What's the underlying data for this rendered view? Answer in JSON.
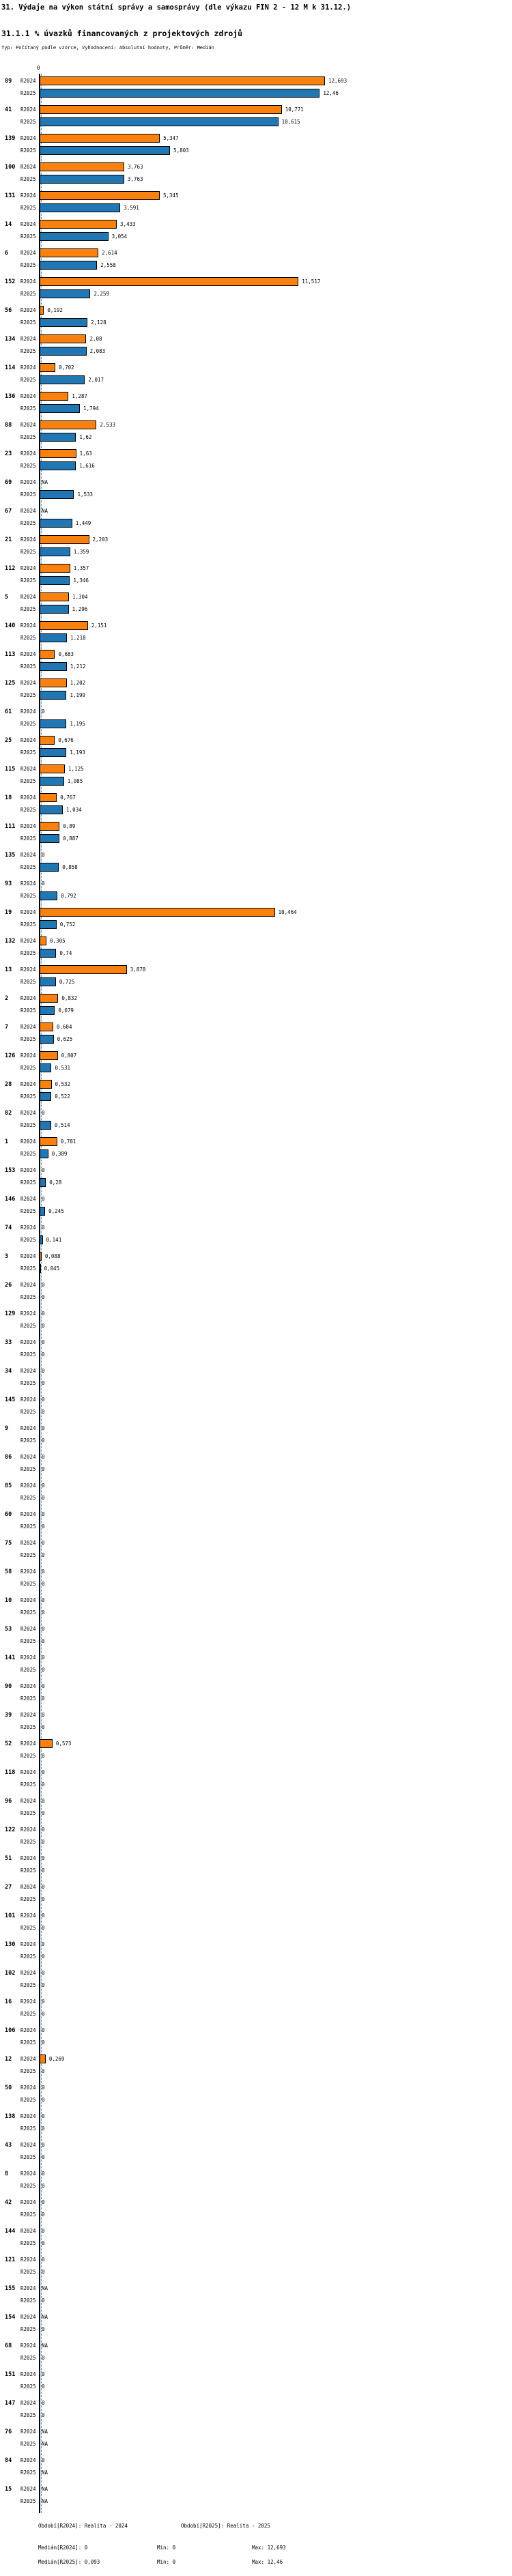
{
  "title": "31. Výdaje na výkon státní správy a samosprávy (dle výkazu FIN 2 - 12 M k 31.12.)",
  "subtitle": "31.1.1 % úvazků financovaných z projektových zdrojů",
  "meta": "Typ: Počítaný podle vzorce, Vyhodnocení: Absolutní hodnoty, Průměr: Medián",
  "colors": {
    "r2024": "#F98110",
    "r2025": "#2176B4",
    "median_line": "#4C96CC",
    "axis": "#000000"
  },
  "footer": {
    "period_2024": "Období[R2024]: Realita - 2024",
    "period_2025": "Období[R2025]: Realita - 2025",
    "median_2024": "Medián[R2024]: 0",
    "min_2024": "Min: 0",
    "max_2024": "Max: 12,693",
    "median_2025": "Medián[R2025]: 0,093",
    "min_2025": "Min: 0",
    "max_2025": "Max: 12,46"
  },
  "chart_data": {
    "type": "bar",
    "orientation": "horizontal",
    "title": "31.1.1 % úvazků financovaných z projektových zdrojů",
    "series": [
      "R2024",
      "R2025"
    ],
    "legend_position": "none",
    "grid": false,
    "decimal_separator": ",",
    "value_axis": {
      "tick_labels": [
        "0"
      ],
      "min": 0,
      "max": 12.693
    },
    "median_lines": {
      "R2024": 0,
      "R2025": 0.093
    },
    "rows": [
      {
        "category": "89",
        "R2024": "12,693",
        "R2025": "12,46"
      },
      {
        "category": "41",
        "R2024": "10,771",
        "R2025": "10,615"
      },
      {
        "category": "139",
        "R2024": "5,347",
        "R2025": "5,803"
      },
      {
        "category": "100",
        "R2024": "3,763",
        "R2025": "3,763"
      },
      {
        "category": "131",
        "R2024": "5,345",
        "R2025": "3,591"
      },
      {
        "category": "14",
        "R2024": "3,433",
        "R2025": "3,054"
      },
      {
        "category": "6",
        "R2024": "2,614",
        "R2025": "2,558"
      },
      {
        "category": "152",
        "R2024": "11,517",
        "R2025": "2,259"
      },
      {
        "category": "56",
        "R2024": "0,192",
        "R2025": "2,128"
      },
      {
        "category": "134",
        "R2024": "2,08",
        "R2025": "2,083"
      },
      {
        "category": "114",
        "R2024": "0,702",
        "R2025": "2,017"
      },
      {
        "category": "136",
        "R2024": "1,287",
        "R2025": "1,794"
      },
      {
        "category": "88",
        "R2024": "2,533",
        "R2025": "1,62"
      },
      {
        "category": "23",
        "R2024": "1,63",
        "R2025": "1,616"
      },
      {
        "category": "69",
        "R2024": "NA",
        "R2025": "1,533"
      },
      {
        "category": "67",
        "R2024": "NA",
        "R2025": "1,449"
      },
      {
        "category": "21",
        "R2024": "2,203",
        "R2025": "1,359"
      },
      {
        "category": "112",
        "R2024": "1,357",
        "R2025": "1,346"
      },
      {
        "category": "5",
        "R2024": "1,304",
        "R2025": "1,296"
      },
      {
        "category": "140",
        "R2024": "2,151",
        "R2025": "1,218"
      },
      {
        "category": "113",
        "R2024": "0,683",
        "R2025": "1,212"
      },
      {
        "category": "125",
        "R2024": "1,202",
        "R2025": "1,199"
      },
      {
        "category": "61",
        "R2024": "0",
        "R2025": "1,195"
      },
      {
        "category": "25",
        "R2024": "0,676",
        "R2025": "1,193"
      },
      {
        "category": "115",
        "R2024": "1,125",
        "R2025": "1,085"
      },
      {
        "category": "18",
        "R2024": "0,767",
        "R2025": "1,034"
      },
      {
        "category": "111",
        "R2024": "0,89",
        "R2025": "0,887"
      },
      {
        "category": "135",
        "R2024": "0",
        "R2025": "0,858"
      },
      {
        "category": "93",
        "R2024": "0",
        "R2025": "0,792"
      },
      {
        "category": "19",
        "R2024": "10,464",
        "R2025": "0,752"
      },
      {
        "category": "132",
        "R2024": "0,305",
        "R2025": "0,74"
      },
      {
        "category": "13",
        "R2024": "3,878",
        "R2025": "0,725"
      },
      {
        "category": "2",
        "R2024": "0,832",
        "R2025": "0,679"
      },
      {
        "category": "7",
        "R2024": "0,604",
        "R2025": "0,625"
      },
      {
        "category": "126",
        "R2024": "0,807",
        "R2025": "0,531"
      },
      {
        "category": "28",
        "R2024": "0,532",
        "R2025": "0,522"
      },
      {
        "category": "82",
        "R2024": "0",
        "R2025": "0,514"
      },
      {
        "category": "1",
        "R2024": "0,781",
        "R2025": "0,389"
      },
      {
        "category": "153",
        "R2024": "0",
        "R2025": "0,28"
      },
      {
        "category": "146",
        "R2024": "0",
        "R2025": "0,245"
      },
      {
        "category": "74",
        "R2024": "0",
        "R2025": "0,141"
      },
      {
        "category": "3",
        "R2024": "0,088",
        "R2025": "0,045"
      },
      {
        "category": "26",
        "R2024": "0",
        "R2025": "0"
      },
      {
        "category": "129",
        "R2024": "0",
        "R2025": "0"
      },
      {
        "category": "33",
        "R2024": "0",
        "R2025": "0"
      },
      {
        "category": "34",
        "R2024": "0",
        "R2025": "0"
      },
      {
        "category": "145",
        "R2024": "0",
        "R2025": "0"
      },
      {
        "category": "9",
        "R2024": "0",
        "R2025": "0"
      },
      {
        "category": "86",
        "R2024": "0",
        "R2025": "0"
      },
      {
        "category": "85",
        "R2024": "0",
        "R2025": "0"
      },
      {
        "category": "60",
        "R2024": "0",
        "R2025": "0"
      },
      {
        "category": "75",
        "R2024": "0",
        "R2025": "0"
      },
      {
        "category": "58",
        "R2024": "0",
        "R2025": "0"
      },
      {
        "category": "10",
        "R2024": "0",
        "R2025": "0"
      },
      {
        "category": "53",
        "R2024": "0",
        "R2025": "0"
      },
      {
        "category": "141",
        "R2024": "0",
        "R2025": "0"
      },
      {
        "category": "90",
        "R2024": "0",
        "R2025": "0"
      },
      {
        "category": "39",
        "R2024": "0",
        "R2025": "0"
      },
      {
        "category": "52",
        "R2024": "0,573",
        "R2025": "0"
      },
      {
        "category": "118",
        "R2024": "0",
        "R2025": "0"
      },
      {
        "category": "96",
        "R2024": "0",
        "R2025": "0"
      },
      {
        "category": "122",
        "R2024": "0",
        "R2025": "0"
      },
      {
        "category": "51",
        "R2024": "0",
        "R2025": "0"
      },
      {
        "category": "27",
        "R2024": "0",
        "R2025": "0"
      },
      {
        "category": "101",
        "R2024": "0",
        "R2025": "0"
      },
      {
        "category": "130",
        "R2024": "0",
        "R2025": "0"
      },
      {
        "category": "102",
        "R2024": "0",
        "R2025": "0"
      },
      {
        "category": "16",
        "R2024": "0",
        "R2025": "0"
      },
      {
        "category": "106",
        "R2024": "0",
        "R2025": "0"
      },
      {
        "category": "12",
        "R2024": "0,269",
        "R2025": "0"
      },
      {
        "category": "50",
        "R2024": "0",
        "R2025": "0"
      },
      {
        "category": "138",
        "R2024": "0",
        "R2025": "0"
      },
      {
        "category": "43",
        "R2024": "0",
        "R2025": "0"
      },
      {
        "category": "8",
        "R2024": "0",
        "R2025": "0"
      },
      {
        "category": "42",
        "R2024": "0",
        "R2025": "0"
      },
      {
        "category": "144",
        "R2024": "0",
        "R2025": "0"
      },
      {
        "category": "121",
        "R2024": "0",
        "R2025": "0"
      },
      {
        "category": "155",
        "R2024": "NA",
        "R2025": "0"
      },
      {
        "category": "154",
        "R2024": "NA",
        "R2025": "0"
      },
      {
        "category": "68",
        "R2024": "NA",
        "R2025": "0"
      },
      {
        "category": "151",
        "R2024": "0",
        "R2025": "0"
      },
      {
        "category": "147",
        "R2024": "0",
        "R2025": "0"
      },
      {
        "category": "76",
        "R2024": "NA",
        "R2025": "NA"
      },
      {
        "category": "84",
        "R2024": "0",
        "R2025": "NA"
      },
      {
        "category": "15",
        "R2024": "NA",
        "R2025": "NA"
      }
    ]
  }
}
